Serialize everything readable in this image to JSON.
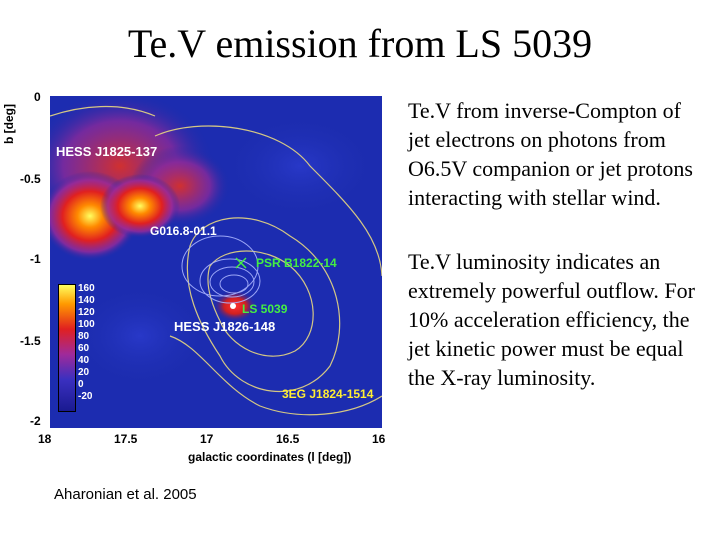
{
  "slide": {
    "title": "Te.V emission from LS 5039",
    "bullets": [
      "Te.V from inverse-Compton of jet electrons on photons from O6.5V companion or jet protons interacting with stellar wind.",
      "Te.V luminosity indicates an extremely powerful outflow. For 10% acceleration efficiency, the jet kinetic power must be equal the X-ray luminosity."
    ],
    "citation": "Aharonian et al. 2005"
  },
  "figure": {
    "y_axis_label": "b [deg]",
    "x_axis_label": "galactic coordinates (l [deg])",
    "y_ticks": [
      "0",
      "-0.5",
      "-1",
      "-1.5",
      "-2"
    ],
    "x_ticks": [
      "18",
      "17.5",
      "17",
      "16.5",
      "16"
    ],
    "sources": {
      "hess_1825": "HESS J1825-137",
      "g016": "G016.8-01.1",
      "psr": "PSR B1822-14",
      "ls5039": "LS 5039",
      "hess_1826": "HESS J1826-148",
      "egret": "3EG J1824-1514"
    },
    "colorbar_ticks": [
      "160",
      "140",
      "120",
      "100",
      "80",
      "60",
      "40",
      "20",
      "0",
      "-20"
    ],
    "colors": {
      "map_background": "#1a2aa8",
      "source_white": "#ffffff",
      "source_green": "#44ee44",
      "source_yellow": "#ffee33",
      "contour": "#e8d880"
    }
  }
}
